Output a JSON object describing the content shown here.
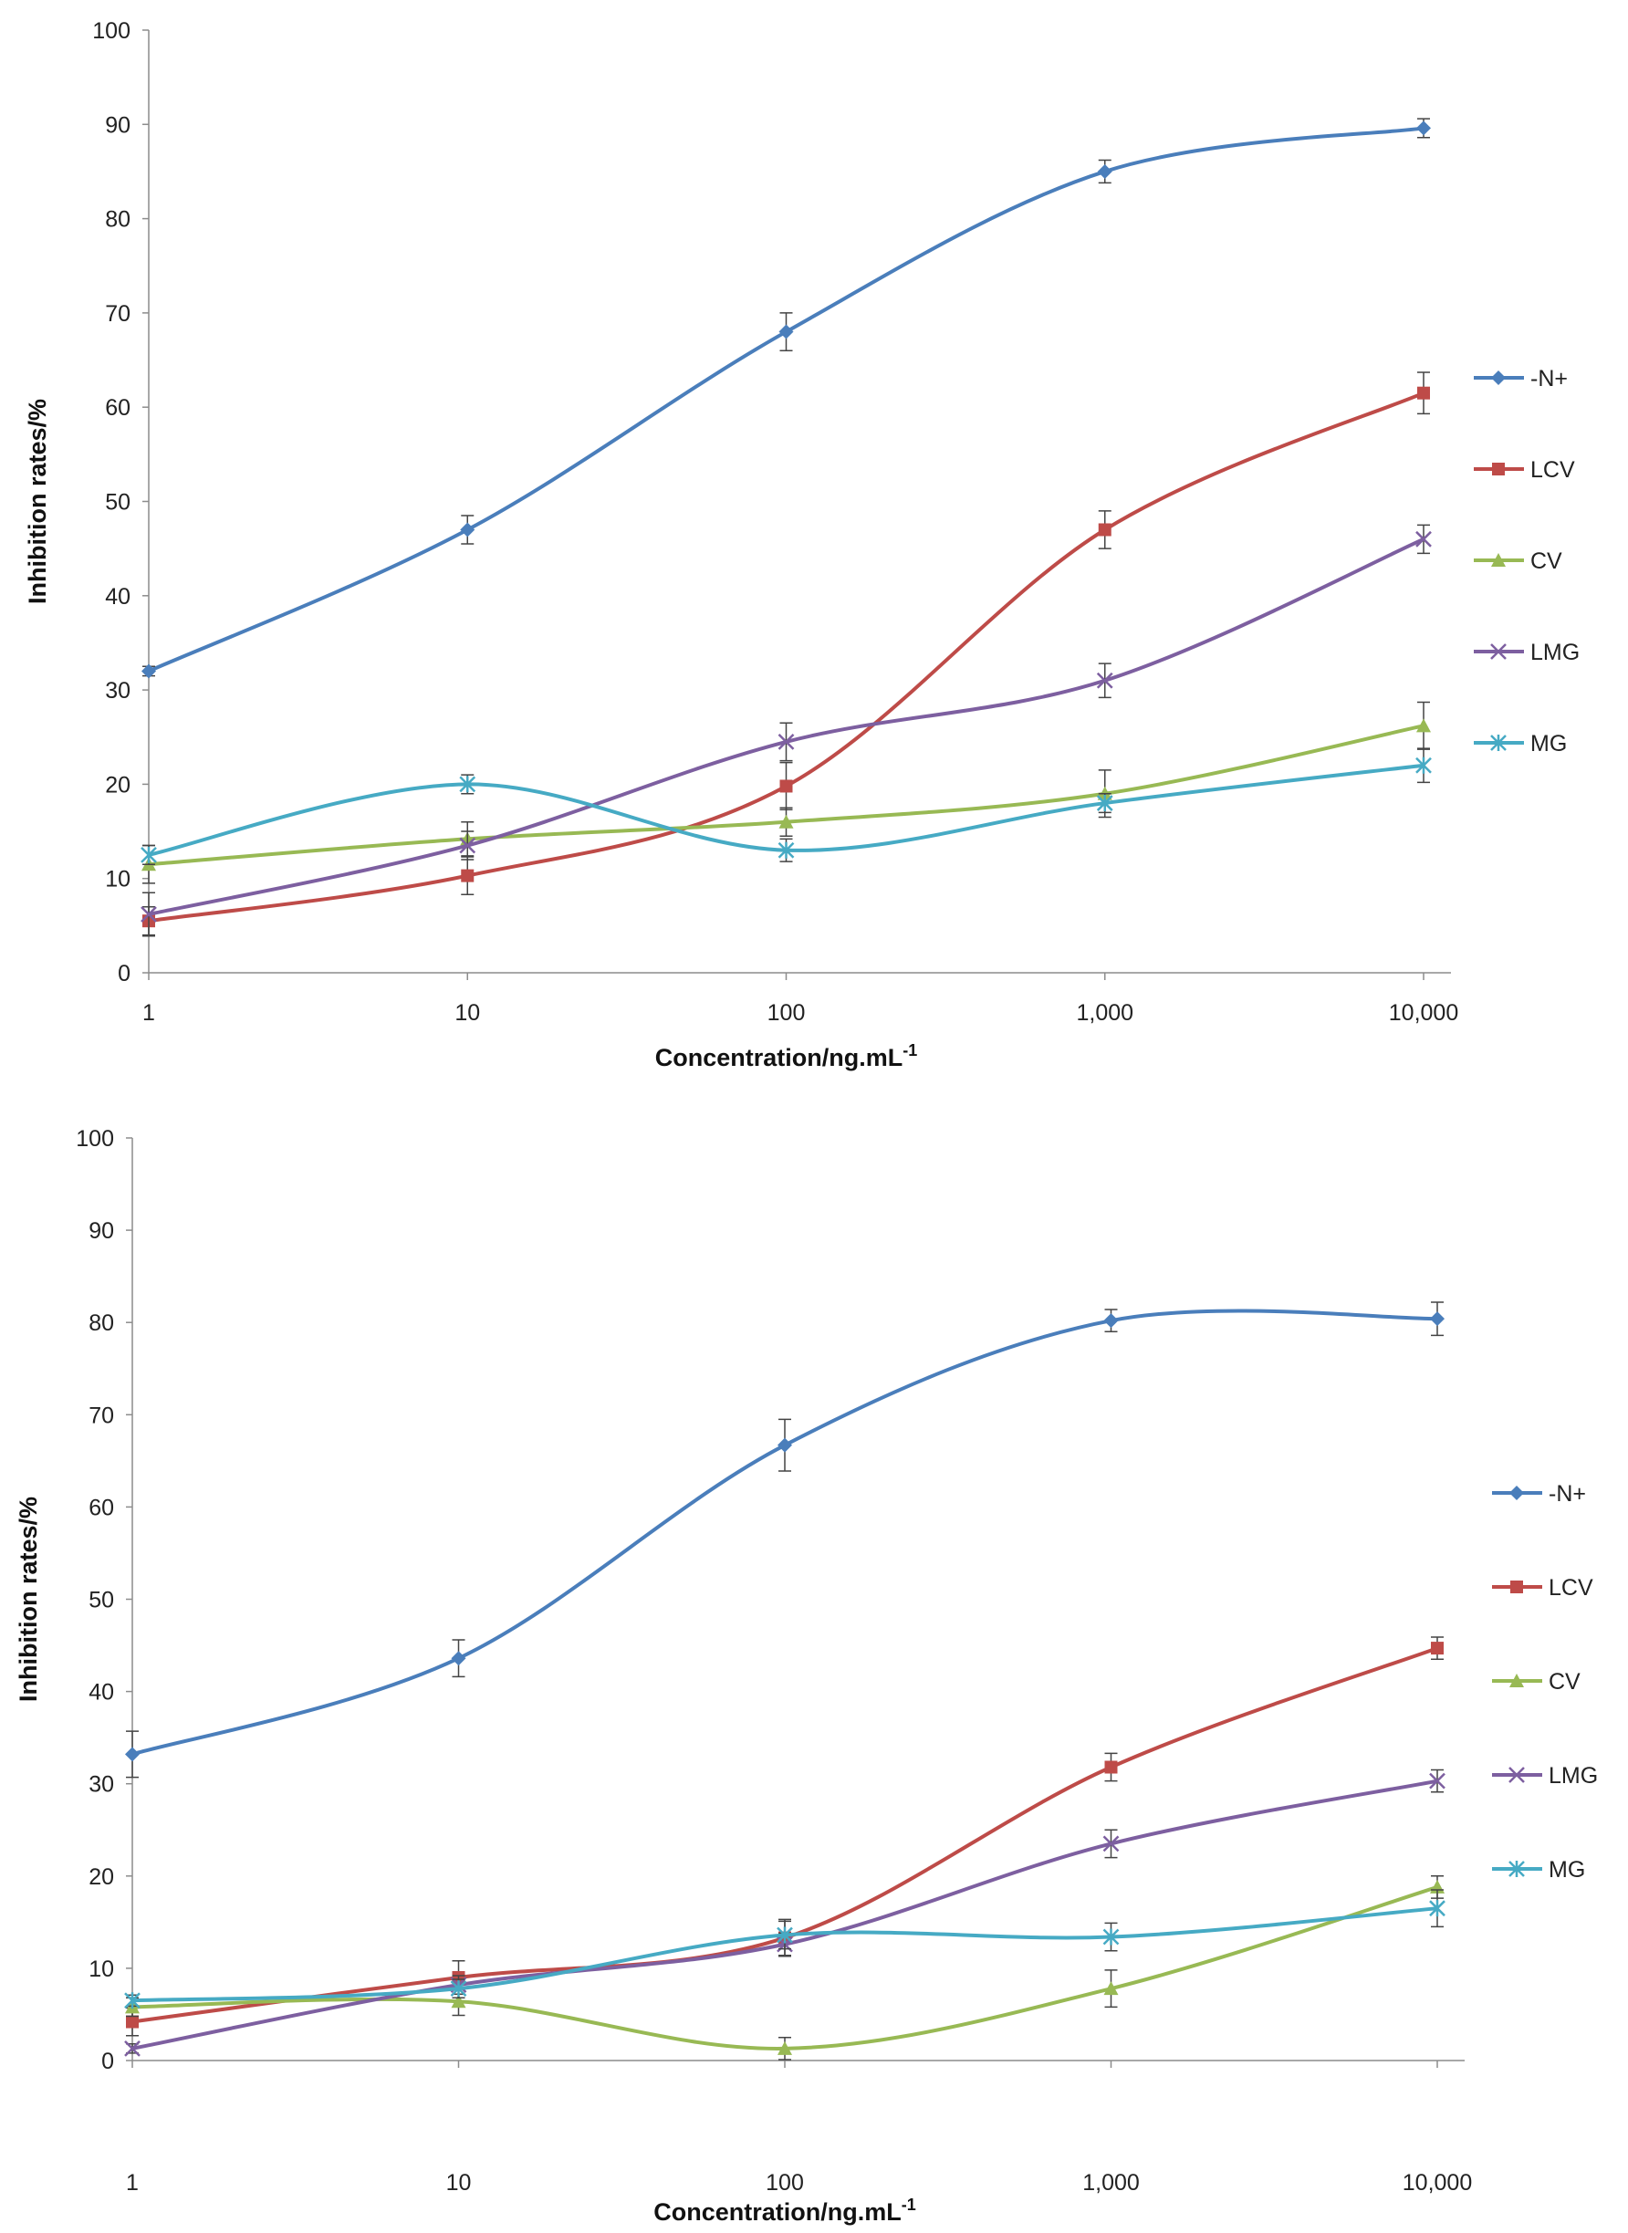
{
  "chart_data": [
    {
      "type": "line",
      "xscale": "log",
      "x": [
        1,
        10,
        100,
        1000,
        10000
      ],
      "xticklabels": [
        "1",
        "10",
        "100",
        "1,000",
        "10,000"
      ],
      "xlabel": "Concentration/ng.mL",
      "xlabel_sup": "-1",
      "ylabel": "Inhibition rates/%",
      "ylim": [
        0,
        100
      ],
      "yticks": [
        0,
        10,
        20,
        30,
        40,
        50,
        60,
        70,
        80,
        90,
        100
      ],
      "legend_position": "right",
      "series": [
        {
          "name": "-N+",
          "color": "#4a7ebb",
          "marker": "diamond",
          "values": [
            32,
            47,
            68,
            85,
            89.6
          ],
          "errors": [
            0.5,
            1.5,
            2,
            1.2,
            1
          ]
        },
        {
          "name": "LCV",
          "color": "#be4b48",
          "marker": "square",
          "values": [
            5.5,
            10.3,
            19.8,
            47,
            61.5
          ],
          "errors": [
            1.5,
            2,
            2.5,
            2,
            2.2
          ]
        },
        {
          "name": "CV",
          "color": "#98b954",
          "marker": "triangle",
          "values": [
            11.5,
            14.2,
            16,
            19,
            26.2
          ],
          "errors": [
            2,
            1.8,
            1.5,
            2.5,
            2.5
          ]
        },
        {
          "name": "LMG",
          "color": "#7d5fa0",
          "marker": "x",
          "values": [
            6.2,
            13.5,
            24.5,
            31,
            46
          ],
          "errors": [
            2.3,
            1.5,
            2,
            1.8,
            1.5
          ]
        },
        {
          "name": "MG",
          "color": "#46aac4",
          "marker": "star",
          "values": [
            12.5,
            20,
            13,
            18,
            22
          ],
          "errors": [
            1,
            1,
            1.2,
            1,
            1.8
          ]
        }
      ]
    },
    {
      "type": "line",
      "xscale": "log",
      "x": [
        1,
        10,
        100,
        1000,
        10000
      ],
      "xticklabels": [
        "1",
        "10",
        "100",
        "1,000",
        "10,000"
      ],
      "xlabel": "Concentration/ng.mL",
      "xlabel_sup": "-1",
      "ylabel": "Inhibition rates/%",
      "ylim": [
        0,
        100
      ],
      "yticks": [
        0,
        10,
        20,
        30,
        40,
        50,
        60,
        70,
        80,
        90,
        100
      ],
      "legend_position": "right",
      "series": [
        {
          "name": "-N+",
          "color": "#4a7ebb",
          "marker": "diamond",
          "values": [
            33.2,
            43.6,
            66.7,
            80.2,
            80.4
          ],
          "errors": [
            2.5,
            2,
            2.8,
            1.2,
            1.8
          ]
        },
        {
          "name": "LCV",
          "color": "#be4b48",
          "marker": "square",
          "values": [
            4.2,
            9,
            13.3,
            31.8,
            44.7
          ],
          "errors": [
            1.5,
            1.8,
            2,
            1.5,
            1.2
          ]
        },
        {
          "name": "CV",
          "color": "#98b954",
          "marker": "triangle",
          "values": [
            5.8,
            6.4,
            1.3,
            7.8,
            18.8
          ],
          "errors": [
            1,
            1.5,
            1.2,
            2,
            1.2
          ]
        },
        {
          "name": "LMG",
          "color": "#7d5fa0",
          "marker": "x",
          "values": [
            1.3,
            8.2,
            12.6,
            23.5,
            30.3
          ],
          "errors": [
            0.5,
            1,
            1.2,
            1.5,
            1.2
          ]
        },
        {
          "name": "MG",
          "color": "#46aac4",
          "marker": "star",
          "values": [
            6.5,
            7.8,
            13.6,
            13.4,
            16.5
          ],
          "errors": [
            0.6,
            1,
            1.5,
            1.5,
            2
          ]
        }
      ]
    }
  ]
}
